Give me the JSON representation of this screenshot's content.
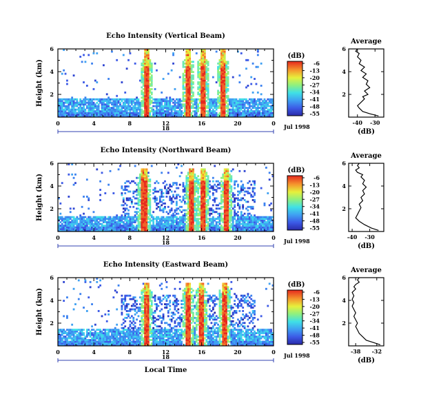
{
  "chart_data": [
    {
      "type": "heatmap",
      "title": "Echo Intensity (Vertical Beam)",
      "ylabel": "Height (km)",
      "xlabel": "",
      "x_ticks": [
        "0",
        "4",
        "8",
        "12",
        "16",
        "20",
        "0"
      ],
      "y_ticks": [
        "2",
        "4",
        "6"
      ],
      "xlim": [
        0,
        24
      ],
      "ylim": [
        0,
        6
      ],
      "date_axis_label": "18",
      "date_label": "Jul 1998",
      "colorbar": {
        "label": "(dB)",
        "ticks": [
          "-6",
          "-13",
          "-20",
          "-27",
          "-34",
          "-41",
          "-48",
          "-55"
        ]
      },
      "rain_bands_hour": [
        9.9,
        14.5,
        16.1,
        18.4
      ],
      "average_profile": {
        "title": "Average",
        "xlabel": "(dB)",
        "x_ticks": [
          "-40",
          "-30"
        ],
        "y_ticks": [
          "2",
          "4",
          "6"
        ],
        "xlim": [
          -45,
          -25
        ],
        "ylim": [
          0,
          6
        ],
        "x": [
          -28,
          -33,
          -37,
          -39,
          -40,
          -38,
          -36,
          -37,
          -34,
          -36,
          -33,
          -35,
          -34,
          -37,
          -35,
          -38,
          -36,
          -39,
          -38,
          -40,
          -39,
          -41,
          -40
        ],
        "y": [
          0.1,
          0.3,
          0.5,
          0.8,
          1.0,
          1.3,
          1.6,
          1.8,
          2.0,
          2.3,
          2.6,
          2.9,
          3.2,
          3.5,
          3.8,
          4.1,
          4.4,
          4.7,
          5.0,
          5.3,
          5.6,
          5.8,
          6.0
        ]
      }
    },
    {
      "type": "heatmap",
      "title": "Echo Intensity (Northward Beam)",
      "ylabel": "Height (km)",
      "xlabel": "",
      "x_ticks": [
        "0",
        "4",
        "8",
        "12",
        "16",
        "20",
        "0"
      ],
      "y_ticks": [
        "2",
        "4",
        "6"
      ],
      "xlim": [
        0,
        24
      ],
      "ylim": [
        0,
        6
      ],
      "date_axis_label": "18",
      "date_label": "Jul 1998",
      "colorbar": {
        "label": "(dB)",
        "ticks": [
          "-6",
          "-13",
          "-20",
          "-27",
          "-34",
          "-41",
          "-48",
          "-55"
        ]
      },
      "rain_bands_hour": [
        9.6,
        14.8,
        16.2,
        18.7
      ],
      "average_profile": {
        "title": "Average",
        "xlabel": "(dB)",
        "x_ticks": [
          "-40",
          "-30"
        ],
        "y_ticks": [
          "2",
          "4",
          "6"
        ],
        "xlim": [
          -42,
          -22
        ],
        "ylim": [
          0,
          6
        ],
        "x": [
          -25,
          -29,
          -33,
          -36,
          -38,
          -37,
          -36,
          -35,
          -36,
          -34,
          -35,
          -33,
          -34,
          -32,
          -34,
          -33,
          -35,
          -34,
          -37,
          -38,
          -36,
          -37,
          -36
        ],
        "y": [
          0.1,
          0.3,
          0.6,
          0.9,
          1.2,
          1.5,
          1.8,
          2.1,
          2.4,
          2.7,
          3.0,
          3.3,
          3.6,
          3.9,
          4.2,
          4.5,
          4.8,
          5.0,
          5.2,
          5.4,
          5.6,
          5.8,
          6.0
        ]
      }
    },
    {
      "type": "heatmap",
      "title": "Echo Intensity (Eastward Beam)",
      "ylabel": "Height (km)",
      "xlabel": "Local Time",
      "x_ticks": [
        "0",
        "4",
        "8",
        "12",
        "16",
        "20",
        "0"
      ],
      "y_ticks": [
        "2",
        "4",
        "6"
      ],
      "xlim": [
        0,
        24
      ],
      "ylim": [
        0,
        6
      ],
      "date_axis_label": "18",
      "date_label": "Jul 1998",
      "colorbar": {
        "label": "(dB)",
        "ticks": [
          "-6",
          "-13",
          "-20",
          "-27",
          "-34",
          "-41",
          "-48",
          "-55"
        ]
      },
      "rain_bands_hour": [
        9.8,
        14.5,
        16.0,
        18.6
      ],
      "average_profile": {
        "title": "Average",
        "xlabel": "(dB)",
        "x_ticks": [
          "-38",
          "-32"
        ],
        "y_ticks": [
          "2",
          "4",
          "6"
        ],
        "xlim": [
          -40,
          -30
        ],
        "ylim": [
          0,
          6
        ],
        "x": [
          -31,
          -33,
          -35,
          -36,
          -37,
          -37.5,
          -38,
          -37.5,
          -38,
          -38.5,
          -38,
          -38.5,
          -39,
          -38.5,
          -39,
          -38.5,
          -39,
          -38,
          -38.5,
          -38,
          -37,
          -37.5,
          -37
        ],
        "y": [
          0.1,
          0.3,
          0.5,
          0.8,
          1.1,
          1.4,
          1.7,
          2.0,
          2.3,
          2.6,
          2.9,
          3.2,
          3.5,
          3.8,
          4.1,
          4.4,
          4.7,
          5.0,
          5.2,
          5.4,
          5.6,
          5.8,
          6.0
        ]
      }
    }
  ]
}
